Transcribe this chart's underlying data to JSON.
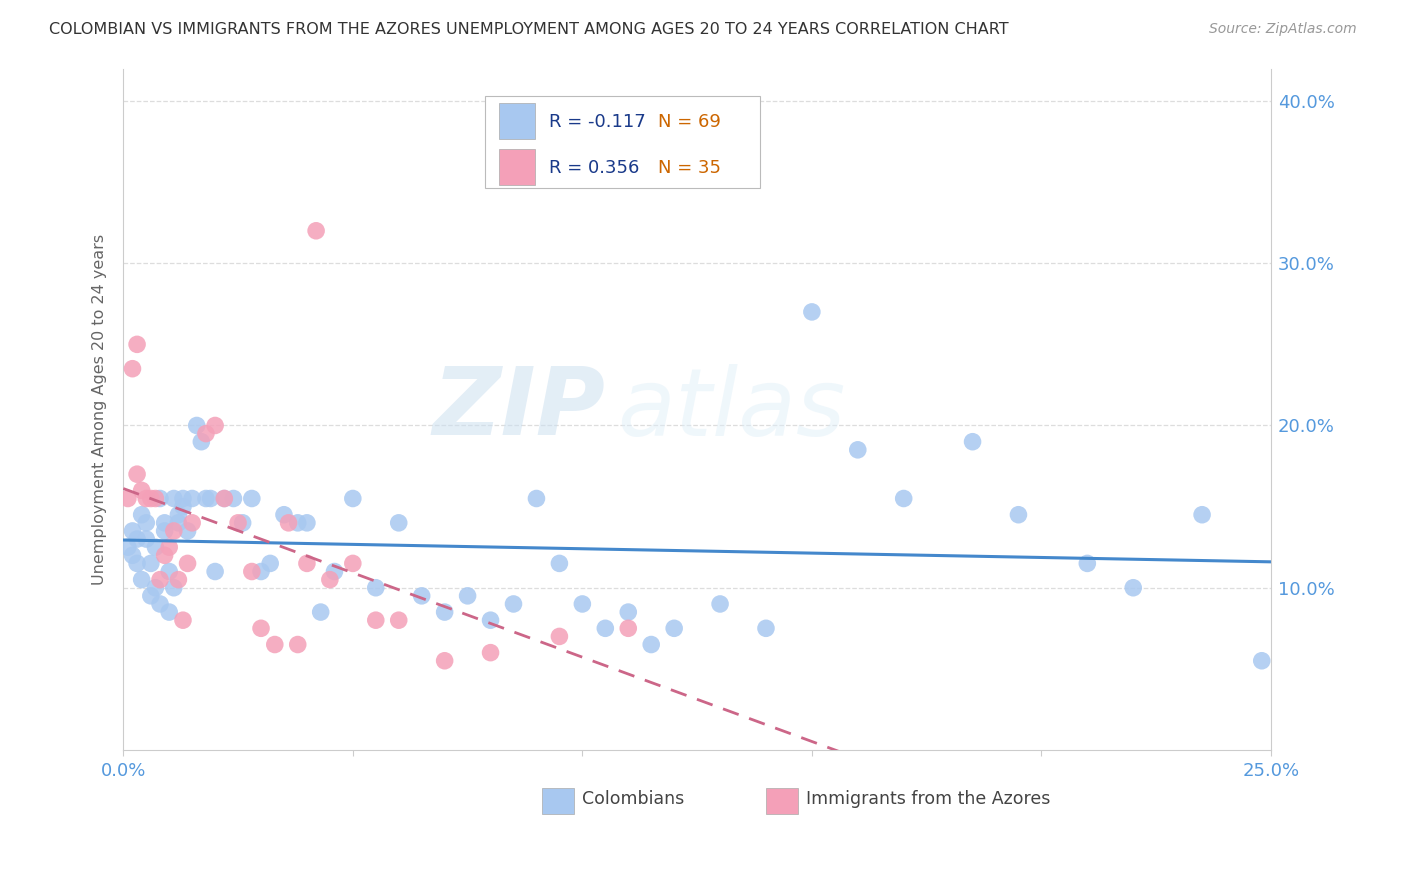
{
  "title": "COLOMBIAN VS IMMIGRANTS FROM THE AZORES UNEMPLOYMENT AMONG AGES 20 TO 24 YEARS CORRELATION CHART",
  "source": "Source: ZipAtlas.com",
  "ylabel": "Unemployment Among Ages 20 to 24 years",
  "xlim": [
    0.0,
    0.25
  ],
  "ylim": [
    0.0,
    0.42
  ],
  "colombians_R": -0.117,
  "colombians_N": 69,
  "azores_R": 0.356,
  "azores_N": 35,
  "colombians_color": "#a8c8f0",
  "azores_color": "#f4a0b8",
  "trendline_colombians_color": "#4488cc",
  "trendline_azores_color": "#cc6688",
  "watermark_zip": "ZIP",
  "watermark_atlas": "atlas",
  "legend_label_1": "Colombians",
  "legend_label_2": "Immigrants from the Azores",
  "R_color": "#1a3a8a",
  "N_color": "#cc6600",
  "colombians_x": [
    0.001,
    0.002,
    0.002,
    0.003,
    0.003,
    0.004,
    0.004,
    0.005,
    0.005,
    0.006,
    0.006,
    0.007,
    0.007,
    0.008,
    0.008,
    0.009,
    0.009,
    0.01,
    0.01,
    0.011,
    0.011,
    0.012,
    0.012,
    0.013,
    0.013,
    0.014,
    0.015,
    0.016,
    0.017,
    0.018,
    0.019,
    0.02,
    0.022,
    0.024,
    0.026,
    0.028,
    0.03,
    0.032,
    0.035,
    0.038,
    0.04,
    0.043,
    0.046,
    0.05,
    0.055,
    0.06,
    0.065,
    0.07,
    0.075,
    0.08,
    0.085,
    0.09,
    0.095,
    0.1,
    0.105,
    0.11,
    0.115,
    0.12,
    0.13,
    0.14,
    0.15,
    0.16,
    0.17,
    0.185,
    0.195,
    0.21,
    0.22,
    0.235,
    0.248
  ],
  "colombians_y": [
    0.125,
    0.135,
    0.12,
    0.13,
    0.115,
    0.145,
    0.105,
    0.14,
    0.13,
    0.115,
    0.095,
    0.125,
    0.1,
    0.09,
    0.155,
    0.14,
    0.135,
    0.11,
    0.085,
    0.1,
    0.155,
    0.145,
    0.14,
    0.15,
    0.155,
    0.135,
    0.155,
    0.2,
    0.19,
    0.155,
    0.155,
    0.11,
    0.155,
    0.155,
    0.14,
    0.155,
    0.11,
    0.115,
    0.145,
    0.14,
    0.14,
    0.085,
    0.11,
    0.155,
    0.1,
    0.14,
    0.095,
    0.085,
    0.095,
    0.08,
    0.09,
    0.155,
    0.115,
    0.09,
    0.075,
    0.085,
    0.065,
    0.075,
    0.09,
    0.075,
    0.27,
    0.185,
    0.155,
    0.19,
    0.145,
    0.115,
    0.1,
    0.145,
    0.055
  ],
  "azores_x": [
    0.001,
    0.002,
    0.003,
    0.003,
    0.004,
    0.005,
    0.006,
    0.007,
    0.008,
    0.009,
    0.01,
    0.011,
    0.012,
    0.013,
    0.014,
    0.015,
    0.018,
    0.02,
    0.022,
    0.025,
    0.028,
    0.03,
    0.033,
    0.036,
    0.038,
    0.04,
    0.042,
    0.045,
    0.05,
    0.055,
    0.06,
    0.07,
    0.08,
    0.095,
    0.11
  ],
  "azores_y": [
    0.155,
    0.235,
    0.25,
    0.17,
    0.16,
    0.155,
    0.155,
    0.155,
    0.105,
    0.12,
    0.125,
    0.135,
    0.105,
    0.08,
    0.115,
    0.14,
    0.195,
    0.2,
    0.155,
    0.14,
    0.11,
    0.075,
    0.065,
    0.14,
    0.065,
    0.115,
    0.32,
    0.105,
    0.115,
    0.08,
    0.08,
    0.055,
    0.06,
    0.07,
    0.075
  ]
}
